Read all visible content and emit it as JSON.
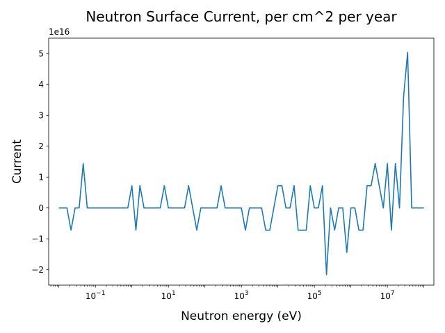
{
  "chart_data": {
    "type": "line",
    "title": "Neutron Surface Current, per cm^2 per year",
    "xlabel": "Neutron energy (eV)",
    "ylabel": "Current",
    "x_scale": "log",
    "xlim": [
      0.00525,
      188000000
    ],
    "ylim": [
      -2.5e+16,
      5.5e+16
    ],
    "y_offset_text": "1e16",
    "grid": false,
    "x_ticks": [
      {
        "value": 0.1,
        "base": "10",
        "exp": "−1"
      },
      {
        "value": 10,
        "base": "10",
        "exp": "1"
      },
      {
        "value": 1000,
        "base": "10",
        "exp": "3"
      },
      {
        "value": 100000,
        "base": "10",
        "exp": "5"
      },
      {
        "value": 10000000,
        "base": "10",
        "exp": "7"
      }
    ],
    "y_ticks": [
      {
        "value": -2e+16,
        "label": "−2"
      },
      {
        "value": -1e+16,
        "label": "−1"
      },
      {
        "value": 0,
        "label": "0"
      },
      {
        "value": 1e+16,
        "label": "1"
      },
      {
        "value": 2e+16,
        "label": "2"
      },
      {
        "value": 3e+16,
        "label": "3"
      },
      {
        "value": 4e+16,
        "label": "4"
      },
      {
        "value": 5e+16,
        "label": "5"
      }
    ],
    "series": [
      {
        "color": "#1f77b4",
        "points": [
          [
            0.01,
            0
          ],
          [
            0.0129,
            0
          ],
          [
            0.0166,
            0
          ],
          [
            0.0215,
            -7200000000000000.0
          ],
          [
            0.0278,
            0
          ],
          [
            0.0359,
            0
          ],
          [
            0.0464,
            1.44e+16
          ],
          [
            0.0599,
            0
          ],
          [
            0.0774,
            0
          ],
          [
            0.1,
            0
          ],
          [
            0.129,
            0
          ],
          [
            0.166,
            0
          ],
          [
            0.215,
            0
          ],
          [
            0.278,
            0
          ],
          [
            0.359,
            0
          ],
          [
            0.464,
            0
          ],
          [
            0.599,
            0
          ],
          [
            0.774,
            0
          ],
          [
            1.0,
            7200000000000000.0
          ],
          [
            1.29,
            -7200000000000000.0
          ],
          [
            1.66,
            7200000000000000.0
          ],
          [
            2.15,
            0
          ],
          [
            2.78,
            0
          ],
          [
            3.59,
            0
          ],
          [
            4.64,
            0
          ],
          [
            5.99,
            0
          ],
          [
            7.74,
            7200000000000000.0
          ],
          [
            10,
            0
          ],
          [
            12.9,
            0
          ],
          [
            16.6,
            0
          ],
          [
            21.5,
            0
          ],
          [
            27.8,
            0
          ],
          [
            35.9,
            7200000000000000.0
          ],
          [
            46.4,
            0
          ],
          [
            59.9,
            -7200000000000000.0
          ],
          [
            77.4,
            0
          ],
          [
            100,
            0
          ],
          [
            129,
            0
          ],
          [
            166,
            0
          ],
          [
            215,
            0
          ],
          [
            278,
            7200000000000000.0
          ],
          [
            359,
            0
          ],
          [
            464,
            0
          ],
          [
            599,
            0
          ],
          [
            774,
            0
          ],
          [
            1000,
            0
          ],
          [
            1290,
            -7200000000000000.0
          ],
          [
            1660,
            0
          ],
          [
            2150,
            0
          ],
          [
            2780,
            0
          ],
          [
            3590,
            0
          ],
          [
            4640,
            -7200000000000000.0
          ],
          [
            5990,
            -7200000000000000.0
          ],
          [
            7740,
            0
          ],
          [
            10000,
            7200000000000000.0
          ],
          [
            12900,
            7200000000000000.0
          ],
          [
            16600,
            0
          ],
          [
            21500,
            0
          ],
          [
            27800,
            7200000000000000.0
          ],
          [
            35900,
            -7200000000000000.0
          ],
          [
            46400,
            -7200000000000000.0
          ],
          [
            59900,
            -7200000000000000.0
          ],
          [
            77400,
            7200000000000000.0
          ],
          [
            100000,
            0
          ],
          [
            129000,
            0
          ],
          [
            166000,
            7200000000000000.0
          ],
          [
            215000,
            -2.16e+16
          ],
          [
            278000,
            0
          ],
          [
            359000,
            -7200000000000000.0
          ],
          [
            464000,
            0
          ],
          [
            599000,
            0
          ],
          [
            774000,
            -1.44e+16
          ],
          [
            1000000,
            0
          ],
          [
            1290000,
            0
          ],
          [
            1660000,
            -7200000000000000.0
          ],
          [
            2150000,
            -7200000000000000.0
          ],
          [
            2780000,
            7200000000000000.0
          ],
          [
            3590000,
            7200000000000000.0
          ],
          [
            4640000,
            1.44e+16
          ],
          [
            5990000,
            7200000000000000.0
          ],
          [
            7740000,
            0
          ],
          [
            10000000,
            1.44e+16
          ],
          [
            12900000,
            -7200000000000000.0
          ],
          [
            16600000,
            1.44e+16
          ],
          [
            21500000,
            0
          ],
          [
            27800000,
            3.6e+16
          ],
          [
            35900000,
            5.04e+16
          ],
          [
            46400000,
            0
          ],
          [
            59900000,
            0
          ],
          [
            77400000,
            0
          ],
          [
            100000000,
            0
          ]
        ]
      }
    ]
  }
}
